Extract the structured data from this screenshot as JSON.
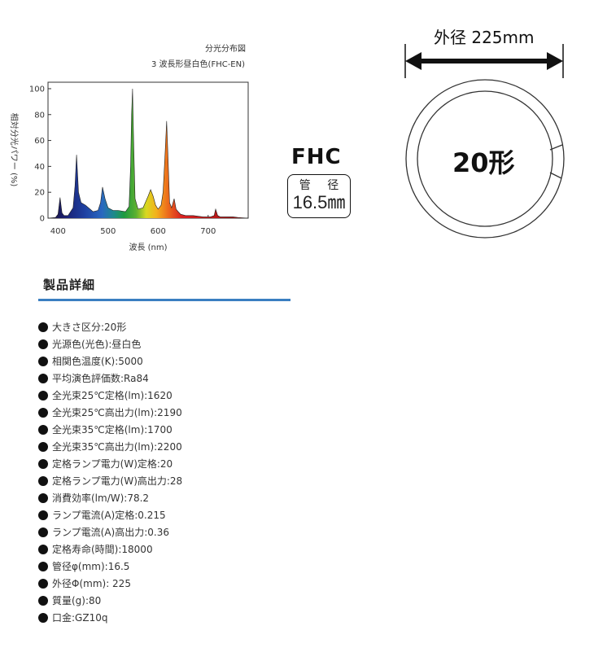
{
  "chart_data": {
    "type": "line",
    "title": "分光分布図",
    "subtitle": "3 波長形昼白色(FHC-EN)",
    "xlabel": "波長 (nm)",
    "ylabel": "相対分光パワー (%)",
    "xlim": [
      380,
      780
    ],
    "ylim": [
      0,
      105
    ],
    "x_ticks": [
      400,
      500,
      600,
      700
    ],
    "y_ticks": [
      0,
      20,
      40,
      60,
      80,
      100
    ],
    "grid": false,
    "series": [
      {
        "x": [
          380,
          395,
          400,
          404,
          408,
          412,
          420,
          430,
          434,
          437,
          441,
          446,
          455,
          470,
          480,
          485,
          489,
          494,
          500,
          510,
          520,
          535,
          542,
          545,
          547,
          549,
          551,
          554,
          560,
          570,
          580,
          585,
          590,
          595,
          600,
          606,
          610,
          614,
          617,
          620,
          623,
          627,
          632,
          636,
          640,
          645,
          655,
          670,
          690,
          705,
          712,
          715,
          719,
          724,
          735,
          750,
          760,
          780
        ],
        "y": [
          0,
          0.5,
          3,
          16,
          4,
          2,
          2,
          8,
          25,
          49,
          20,
          12,
          10,
          5,
          6,
          12,
          24,
          15,
          8,
          6,
          6,
          5,
          9,
          40,
          80,
          100,
          60,
          15,
          7,
          8,
          17,
          22,
          17,
          10,
          7,
          10,
          20,
          50,
          75,
          45,
          12,
          8,
          15,
          7,
          5,
          3,
          2,
          2,
          1,
          1,
          2,
          7,
          2,
          1,
          1,
          1,
          0.5,
          0
        ]
      }
    ]
  },
  "fhc_diagram": {
    "model": "FHC",
    "tube_label": "管 径",
    "tube_value": "16.5㎜"
  },
  "ring_diagram": {
    "diameter_label": "外径 225mm",
    "size_label": "20形"
  },
  "section_heading": "製品詳細",
  "specs": [
    "大きさ区分:20形",
    "光源色(光色):昼白色",
    "相関色温度(K):5000",
    "平均演色評価数:Ra84",
    "全光束25℃定格(lm):1620",
    "全光束25℃高出力(lm):2190",
    "全光束35℃定格(lm):1700",
    "全光束35℃高出力(lm):2200",
    "定格ランプ電力(W)定格:20",
    "定格ランプ電力(W)高出力:28",
    "消費効率(lm/W):78.2",
    "ランプ電流(A)定格:0.215",
    "ランプ電流(A)高出力:0.36",
    "定格寿命(時間):18000",
    "管径φ(mm):16.5",
    "外径Φ(mm): 225",
    "質量(g):80",
    "口金:GZ10q"
  ]
}
